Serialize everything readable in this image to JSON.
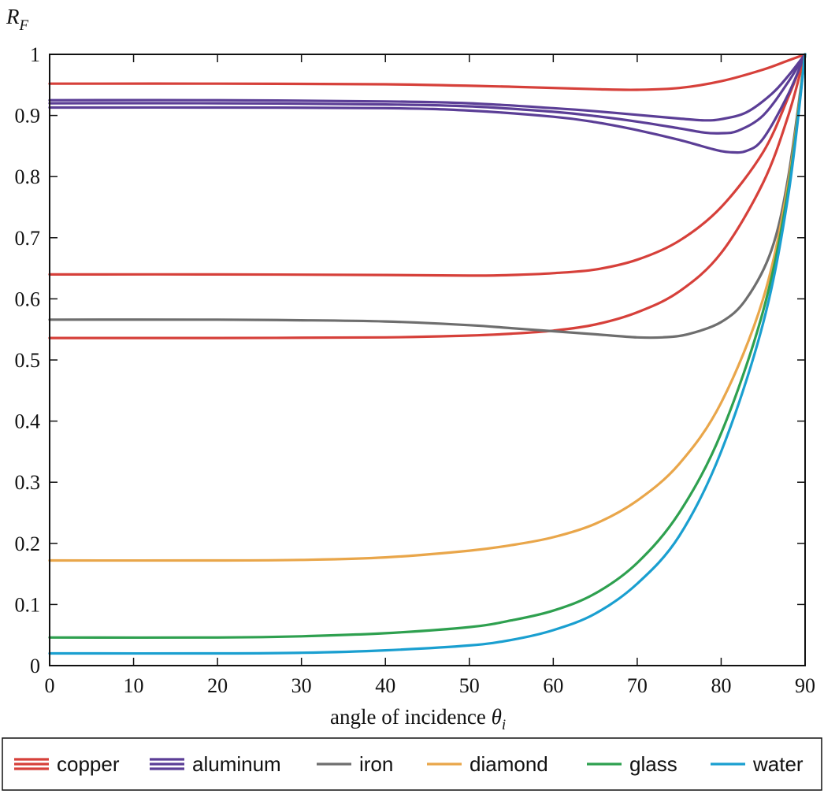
{
  "chart_data": {
    "type": "line",
    "title": "",
    "xlabel": {
      "main": "angle of incidence ",
      "symbol": "θ",
      "subscript": "i"
    },
    "ylabel": {
      "symbol": "R",
      "subscript": "F"
    },
    "xlim": [
      0,
      90
    ],
    "ylim": [
      0,
      1
    ],
    "x_ticks": [
      "0",
      "10",
      "20",
      "30",
      "40",
      "50",
      "60",
      "70",
      "80",
      "90"
    ],
    "y_ticks": [
      "0",
      "0.1",
      "0.2",
      "0.3",
      "0.4",
      "0.5",
      "0.6",
      "0.7",
      "0.8",
      "0.9",
      "1"
    ],
    "grid": false,
    "legend_position": "bottom",
    "legend": [
      {
        "label": "copper",
        "color": "#d6403a",
        "lines": 3
      },
      {
        "label": "aluminum",
        "color": "#5b3e96",
        "lines": 3
      },
      {
        "label": "iron",
        "color": "#6e6e6e",
        "lines": 1
      },
      {
        "label": "diamond",
        "color": "#e9a64a",
        "lines": 1
      },
      {
        "label": "glass",
        "color": "#2ea04f",
        "lines": 1
      },
      {
        "label": "water",
        "color": "#1a9fd0",
        "lines": 1
      }
    ],
    "series": [
      {
        "material": "copper",
        "color": "#d6403a",
        "points": [
          [
            0,
            0.952
          ],
          [
            20,
            0.952
          ],
          [
            40,
            0.951
          ],
          [
            55,
            0.947
          ],
          [
            65,
            0.943
          ],
          [
            70,
            0.942
          ],
          [
            75,
            0.945
          ],
          [
            80,
            0.956
          ],
          [
            85,
            0.975
          ],
          [
            88,
            0.99
          ],
          [
            90,
            1.0
          ]
        ]
      },
      {
        "material": "copper",
        "color": "#d6403a",
        "points": [
          [
            0,
            0.64
          ],
          [
            20,
            0.64
          ],
          [
            40,
            0.639
          ],
          [
            50,
            0.638
          ],
          [
            55,
            0.639
          ],
          [
            60,
            0.642
          ],
          [
            65,
            0.648
          ],
          [
            70,
            0.664
          ],
          [
            75,
            0.695
          ],
          [
            80,
            0.75
          ],
          [
            85,
            0.84
          ],
          [
            88,
            0.93
          ],
          [
            90,
            1.0
          ]
        ]
      },
      {
        "material": "copper",
        "color": "#d6403a",
        "points": [
          [
            0,
            0.536
          ],
          [
            20,
            0.536
          ],
          [
            40,
            0.537
          ],
          [
            50,
            0.54
          ],
          [
            55,
            0.543
          ],
          [
            60,
            0.548
          ],
          [
            65,
            0.558
          ],
          [
            70,
            0.578
          ],
          [
            75,
            0.612
          ],
          [
            80,
            0.675
          ],
          [
            85,
            0.79
          ],
          [
            88,
            0.9
          ],
          [
            90,
            1.0
          ]
        ]
      },
      {
        "material": "aluminum",
        "color": "#5b3e96",
        "points": [
          [
            0,
            0.925
          ],
          [
            20,
            0.925
          ],
          [
            40,
            0.923
          ],
          [
            50,
            0.92
          ],
          [
            60,
            0.912
          ],
          [
            65,
            0.907
          ],
          [
            70,
            0.901
          ],
          [
            75,
            0.895
          ],
          [
            78,
            0.892
          ],
          [
            80,
            0.894
          ],
          [
            83,
            0.905
          ],
          [
            86,
            0.935
          ],
          [
            88,
            0.965
          ],
          [
            90,
            1.0
          ]
        ]
      },
      {
        "material": "aluminum",
        "color": "#5b3e96",
        "points": [
          [
            0,
            0.92
          ],
          [
            20,
            0.92
          ],
          [
            40,
            0.918
          ],
          [
            50,
            0.915
          ],
          [
            60,
            0.906
          ],
          [
            65,
            0.899
          ],
          [
            70,
            0.89
          ],
          [
            75,
            0.879
          ],
          [
            78,
            0.872
          ],
          [
            80,
            0.871
          ],
          [
            82,
            0.875
          ],
          [
            85,
            0.9
          ],
          [
            88,
            0.955
          ],
          [
            90,
            1.0
          ]
        ]
      },
      {
        "material": "aluminum",
        "color": "#5b3e96",
        "points": [
          [
            0,
            0.913
          ],
          [
            20,
            0.913
          ],
          [
            40,
            0.912
          ],
          [
            50,
            0.908
          ],
          [
            60,
            0.898
          ],
          [
            65,
            0.889
          ],
          [
            70,
            0.876
          ],
          [
            75,
            0.86
          ],
          [
            79,
            0.845
          ],
          [
            81,
            0.84
          ],
          [
            83,
            0.842
          ],
          [
            85,
            0.862
          ],
          [
            88,
            0.935
          ],
          [
            90,
            1.0
          ]
        ]
      },
      {
        "material": "iron",
        "color": "#6e6e6e",
        "points": [
          [
            0,
            0.566
          ],
          [
            20,
            0.566
          ],
          [
            30,
            0.565
          ],
          [
            40,
            0.563
          ],
          [
            50,
            0.557
          ],
          [
            55,
            0.552
          ],
          [
            60,
            0.547
          ],
          [
            65,
            0.542
          ],
          [
            70,
            0.537
          ],
          [
            73,
            0.537
          ],
          [
            76,
            0.542
          ],
          [
            80,
            0.562
          ],
          [
            83,
            0.6
          ],
          [
            86,
            0.68
          ],
          [
            88,
            0.8
          ],
          [
            90,
            1.0
          ]
        ]
      },
      {
        "material": "diamond",
        "color": "#e9a64a",
        "points": [
          [
            0,
            0.172
          ],
          [
            20,
            0.172
          ],
          [
            30,
            0.173
          ],
          [
            40,
            0.177
          ],
          [
            50,
            0.188
          ],
          [
            55,
            0.197
          ],
          [
            60,
            0.21
          ],
          [
            65,
            0.232
          ],
          [
            70,
            0.27
          ],
          [
            75,
            0.33
          ],
          [
            80,
            0.43
          ],
          [
            85,
            0.6
          ],
          [
            88,
            0.79
          ],
          [
            90,
            1.0
          ]
        ]
      },
      {
        "material": "glass",
        "color": "#2ea04f",
        "points": [
          [
            0,
            0.046
          ],
          [
            20,
            0.046
          ],
          [
            30,
            0.048
          ],
          [
            40,
            0.053
          ],
          [
            50,
            0.063
          ],
          [
            55,
            0.074
          ],
          [
            60,
            0.09
          ],
          [
            65,
            0.118
          ],
          [
            70,
            0.168
          ],
          [
            75,
            0.25
          ],
          [
            80,
            0.38
          ],
          [
            85,
            0.58
          ],
          [
            88,
            0.78
          ],
          [
            90,
            1.0
          ]
        ]
      },
      {
        "material": "water",
        "color": "#1a9fd0",
        "points": [
          [
            0,
            0.02
          ],
          [
            20,
            0.02
          ],
          [
            30,
            0.021
          ],
          [
            40,
            0.025
          ],
          [
            50,
            0.033
          ],
          [
            55,
            0.042
          ],
          [
            60,
            0.058
          ],
          [
            65,
            0.085
          ],
          [
            70,
            0.134
          ],
          [
            75,
            0.212
          ],
          [
            80,
            0.35
          ],
          [
            85,
            0.56
          ],
          [
            88,
            0.77
          ],
          [
            90,
            1.0
          ]
        ]
      }
    ]
  }
}
